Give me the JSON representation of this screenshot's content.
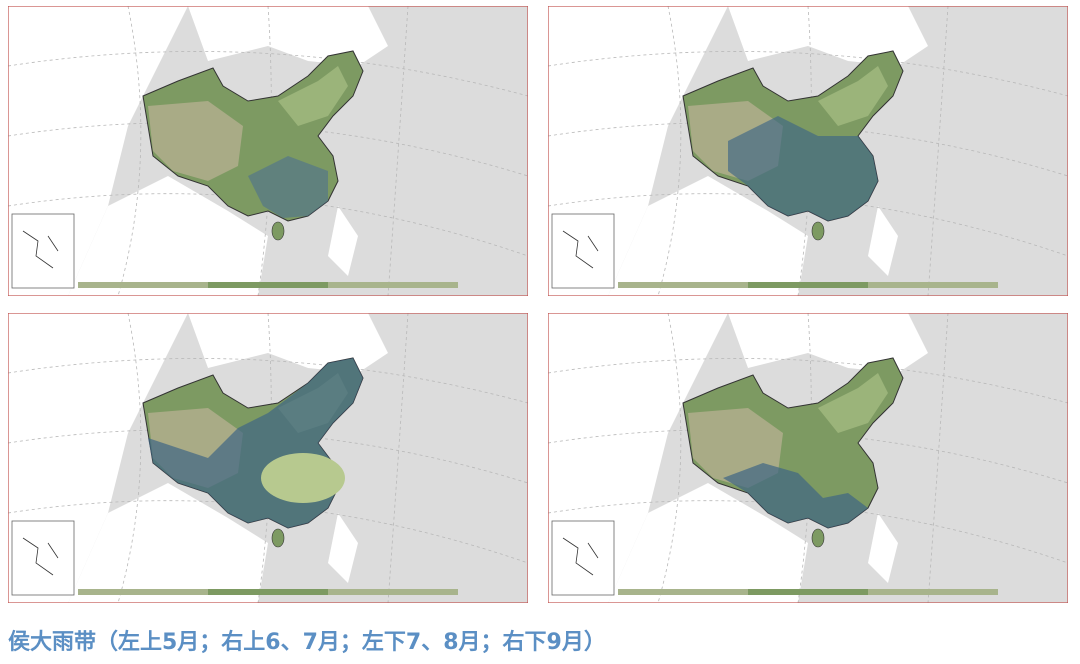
{
  "caption": "侯大雨带（左上5月；右上6、7月；左下7、8月；右下9月）"
}
